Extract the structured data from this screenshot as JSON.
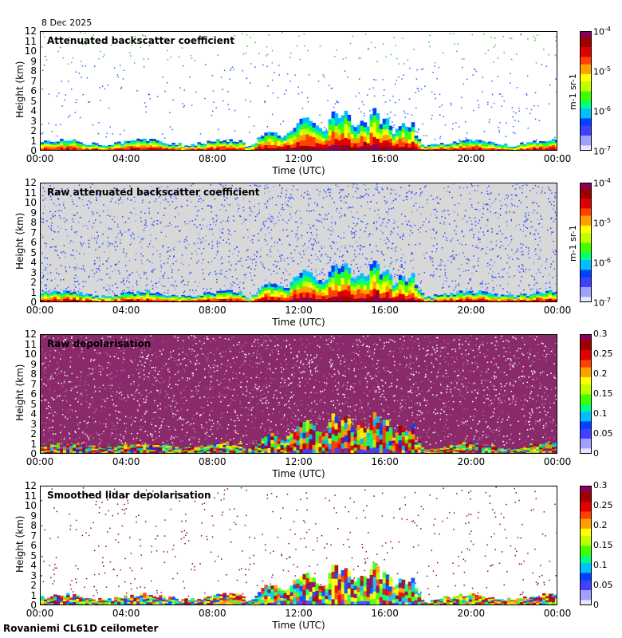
{
  "date": "8 Dec 2025",
  "footer": "Rovaniemi CL61D ceilometer",
  "colors": {
    "background_fill": "#d8d8d8",
    "nodata": "#ffffff",
    "depol_noise_a": "#7a1050",
    "depol_noise_b": "#9a4a8a"
  },
  "chart_data": [
    {
      "type": "heatmap",
      "title": "Attenuated backscatter coefficient",
      "xlabel": "Time (UTC)",
      "ylabel": "Height (km)",
      "x_ticks": [
        "00:00",
        "04:00",
        "08:00",
        "12:00",
        "16:00",
        "20:00",
        "00:00"
      ],
      "y_ticks": [
        "0",
        "1",
        "2",
        "3",
        "4",
        "5",
        "6",
        "7",
        "8",
        "9",
        "10",
        "11",
        "12"
      ],
      "ylim": [
        0,
        12
      ],
      "colorbar": {
        "ticks": [
          "10-7",
          "10-6",
          "10-5",
          "10-4"
        ],
        "scale": "log",
        "unit": "m-1 sr-1",
        "range": [
          1e-07,
          0.0001
        ]
      }
    },
    {
      "type": "heatmap",
      "title": "Raw attenuated backscatter coefficient",
      "xlabel": "Time (UTC)",
      "ylabel": "Height (km)",
      "x_ticks": [
        "00:00",
        "04:00",
        "08:00",
        "12:00",
        "16:00",
        "20:00",
        "00:00"
      ],
      "y_ticks": [
        "0",
        "1",
        "2",
        "3",
        "4",
        "5",
        "6",
        "7",
        "8",
        "9",
        "10",
        "11",
        "12"
      ],
      "ylim": [
        0,
        12
      ],
      "colorbar": {
        "ticks": [
          "10-7",
          "10-6",
          "10-5",
          "10-4"
        ],
        "scale": "log",
        "unit": "m-1 sr-1",
        "range": [
          1e-07,
          0.0001
        ]
      }
    },
    {
      "type": "heatmap",
      "title": "Raw depolarisation",
      "xlabel": "Time (UTC)",
      "ylabel": "Height (km)",
      "x_ticks": [
        "00:00",
        "04:00",
        "08:00",
        "12:00",
        "16:00",
        "20:00",
        "00:00"
      ],
      "y_ticks": [
        "0",
        "1",
        "2",
        "3",
        "4",
        "5",
        "6",
        "7",
        "8",
        "9",
        "10",
        "11",
        "12"
      ],
      "ylim": [
        0,
        12
      ],
      "colorbar": {
        "ticks": [
          "0",
          "0.05",
          "0.1",
          "0.15",
          "0.2",
          "0.25",
          "0.3"
        ],
        "scale": "linear",
        "range": [
          0,
          0.3
        ]
      }
    },
    {
      "type": "heatmap",
      "title": "Smoothed lidar depolarisation",
      "xlabel": "Time (UTC)",
      "ylabel": "Height (km)",
      "x_ticks": [
        "00:00",
        "04:00",
        "08:00",
        "12:00",
        "16:00",
        "20:00",
        "00:00"
      ],
      "y_ticks": [
        "0",
        "1",
        "2",
        "3",
        "4",
        "5",
        "6",
        "7",
        "8",
        "9",
        "10",
        "11",
        "12"
      ],
      "ylim": [
        0,
        12
      ],
      "colorbar": {
        "ticks": [
          "0",
          "0.05",
          "0.1",
          "0.15",
          "0.2",
          "0.25",
          "0.3"
        ],
        "scale": "linear",
        "range": [
          0,
          0.3
        ]
      }
    }
  ]
}
